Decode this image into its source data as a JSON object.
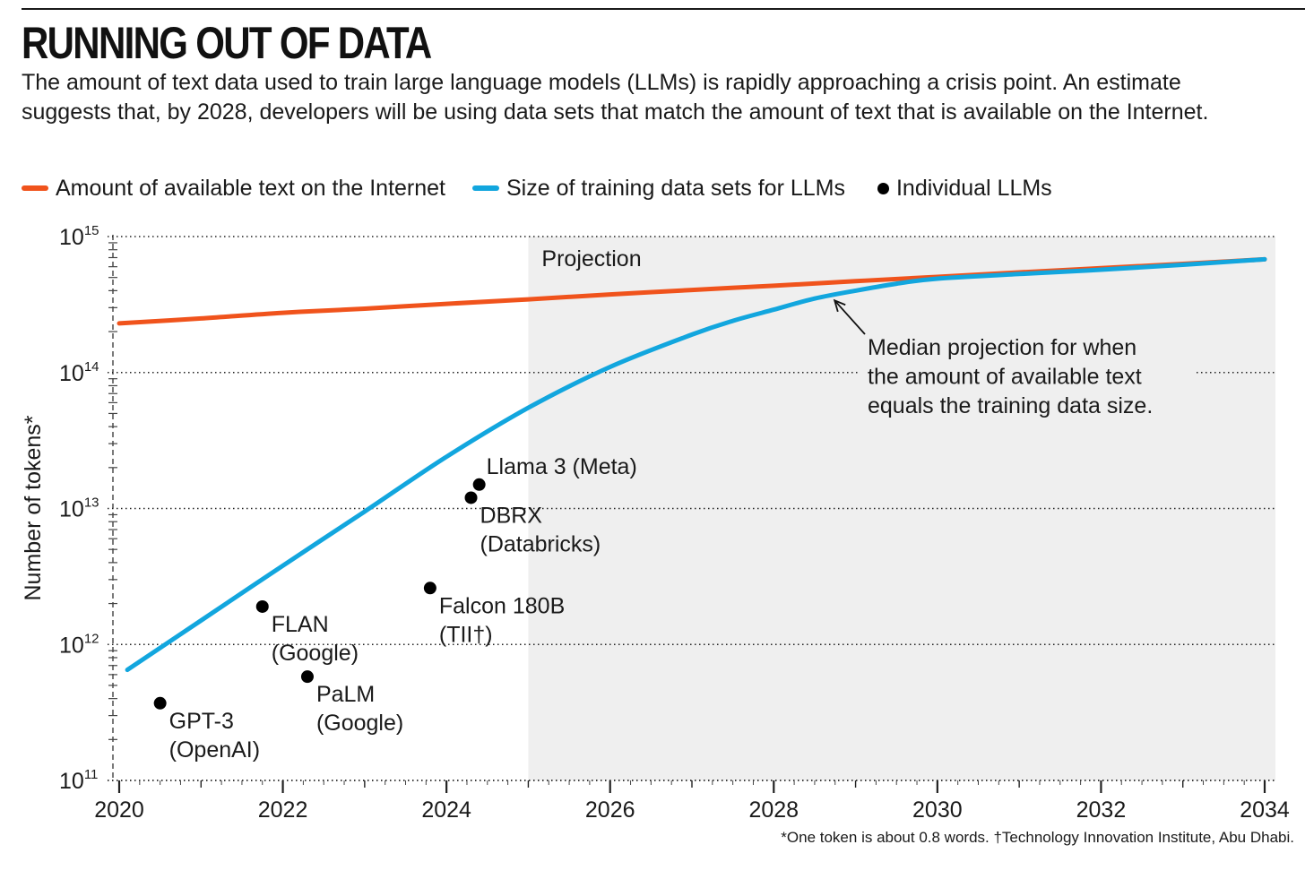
{
  "title": "RUNNING OUT OF DATA",
  "subtitle": "The amount of text data used to train large language models (LLMs) is rapidly approaching a crisis point. An estimate suggests that, by 2028, developers will be using data sets that match the amount of text that is available on the Internet.",
  "legend": [
    {
      "label": "Amount of available text on the Internet",
      "color": "#f0531c",
      "kind": "line"
    },
    {
      "label": "Size of training data sets for LLMs",
      "color": "#12a6de",
      "kind": "line"
    },
    {
      "label": "Individual LLMs",
      "color": "#000000",
      "kind": "dot"
    }
  ],
  "footnote": "*One token is about 0.8 words. †Technology Innovation Institute, Abu Dhabi.",
  "colors": {
    "internet": "#f0531c",
    "training": "#12a6de",
    "projection_shade": "#efefef",
    "points": "#000000"
  },
  "chart_data": {
    "type": "line",
    "ylabel": "Number of tokens*",
    "xlabel": "",
    "xlim": [
      2020,
      2034
    ],
    "ylim": [
      100000000000.0,
      1000000000000000.0
    ],
    "y_scale": "log",
    "grid": "dotted horizontal at decades",
    "x_ticks": [
      "2020",
      "2022",
      "2024",
      "2026",
      "2028",
      "2030",
      "2032",
      "2034"
    ],
    "y_ticks": [
      {
        "base": "10",
        "exp": "11",
        "value": 100000000000.0
      },
      {
        "base": "10",
        "exp": "12",
        "value": 1000000000000.0
      },
      {
        "base": "10",
        "exp": "13",
        "value": 10000000000000.0
      },
      {
        "base": "10",
        "exp": "14",
        "value": 100000000000000.0
      },
      {
        "base": "10",
        "exp": "15",
        "value": 1000000000000000.0
      }
    ],
    "projection": {
      "label": "Projection",
      "start": 2025
    },
    "series": [
      {
        "name": "Amount of available text on the Internet",
        "color": "#f0531c",
        "x": [
          2020,
          2021,
          2022,
          2023,
          2024,
          2025,
          2026,
          2027,
          2028,
          2029,
          2030,
          2031,
          2032,
          2033,
          2034
        ],
        "y": [
          230000000000000.0,
          250000000000000.0,
          275000000000000.0,
          295000000000000.0,
          320000000000000.0,
          345000000000000.0,
          375000000000000.0,
          405000000000000.0,
          435000000000000.0,
          470000000000000.0,
          505000000000000.0,
          545000000000000.0,
          585000000000000.0,
          630000000000000.0,
          680000000000000.0
        ]
      },
      {
        "name": "Size of training data sets for LLMs",
        "color": "#12a6de",
        "x": [
          2020.1,
          2021,
          2022,
          2023,
          2024,
          2025,
          2026,
          2027,
          2027.5,
          2028,
          2028.5,
          2029,
          2029.5,
          2030,
          2031,
          2032,
          2033,
          2034
        ],
        "y": [
          650000000000.0,
          1500000000000.0,
          3800000000000.0,
          9500000000000.0,
          24000000000000.0,
          55000000000000.0,
          110000000000000.0,
          190000000000000.0,
          240000000000000.0,
          290000000000000.0,
          350000000000000.0,
          400000000000000.0,
          450000000000000.0,
          490000000000000.0,
          530000000000000.0,
          570000000000000.0,
          620000000000000.0,
          680000000000000.0
        ]
      }
    ],
    "points": [
      {
        "name": "GPT-3",
        "org": "(OpenAI)",
        "x": 2020.5,
        "y": 370000000000.0
      },
      {
        "name": "FLAN",
        "org": "(Google)",
        "x": 2021.75,
        "y": 1900000000000.0
      },
      {
        "name": "PaLM",
        "org": "(Google)",
        "x": 2022.3,
        "y": 580000000000.0
      },
      {
        "name": "Falcon 180B",
        "org": "(TII†)",
        "x": 2023.8,
        "y": 2600000000000.0
      },
      {
        "name": "DBRX",
        "org": "(Databricks)",
        "x": 2024.3,
        "y": 12000000000000.0
      },
      {
        "name": "Llama 3 (Meta)",
        "org": "",
        "x": 2024.4,
        "y": 15000000000000.0
      }
    ],
    "annotation": {
      "lines": [
        "Median projection for when",
        "the amount of available text",
        "equals the training data size."
      ],
      "target_x": 2028.7,
      "target_y": 360000000000000.0
    }
  }
}
